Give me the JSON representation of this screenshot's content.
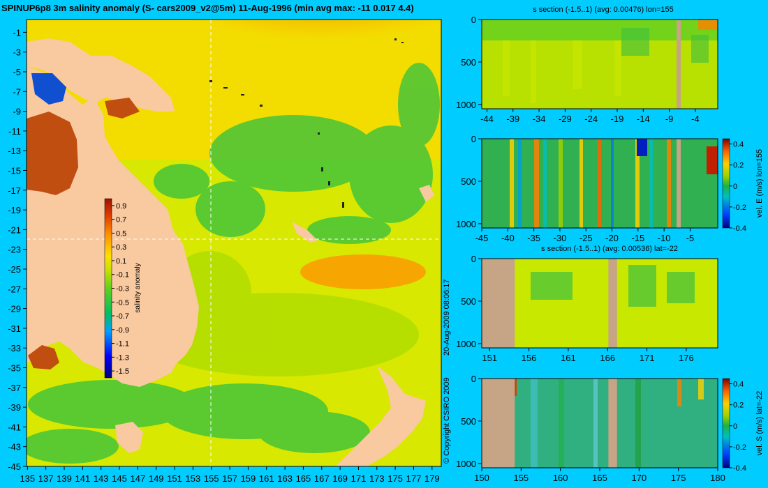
{
  "page": {
    "main_title": "SPINUP6p8 3m salinity anomaly (S- cars2009_v2@5m) 11-Aug-1996 (min avg max: -11 0.017 4.4)",
    "copyright": "© Copyright CSIRO 2009",
    "timestamp": "20-Aug-2009 08:06:17"
  },
  "colors": {
    "background": "#00ccff",
    "land": "#f9c9a0",
    "section_land": "#c6a486",
    "crosshair": "#ffffff"
  },
  "chart_data": [
    {
      "type": "heatmap",
      "name": "map",
      "title": "SPINUP6p8 3m salinity anomaly (S- cars2009_v2@5m) 11-Aug-1996 (min avg max: -11 0.017 4.4)",
      "x_ticks": [
        "135",
        "137",
        "139",
        "141",
        "143",
        "145",
        "147",
        "149",
        "151",
        "153",
        "155",
        "157",
        "159",
        "161",
        "163",
        "165",
        "167",
        "169",
        "171",
        "173",
        "175",
        "177",
        "179"
      ],
      "y_ticks": [
        "-1",
        "-3",
        "-5",
        "-7",
        "-9",
        "-11",
        "-13",
        "-15",
        "-17",
        "-19",
        "-21",
        "-23",
        "-25",
        "-27",
        "-29",
        "-31",
        "-33",
        "-35",
        "-37",
        "-39",
        "-41",
        "-43",
        "-45"
      ],
      "xlim": [
        134.9,
        180
      ],
      "ylim": [
        -45,
        0.3
      ],
      "crosshair": {
        "lon": 155,
        "lat": -22
      },
      "colorbar": {
        "label": "salinity anomaly",
        "ticks": [
          "0.9",
          "0.7",
          "0.5",
          "0.3",
          "0.1",
          "-0.1",
          "-0.3",
          "-0.5",
          "-0.7",
          "-0.9",
          "-1.1",
          "-1.3",
          "-1.5"
        ],
        "range": [
          -1.6,
          1.0
        ]
      }
    },
    {
      "type": "heatmap",
      "name": "s-section-lon155",
      "title": "s section (-1.5..1) (avg: 0.00476) lon=155",
      "x_ticks": [
        "-44",
        "-39",
        "-34",
        "-29",
        "-24",
        "-19",
        "-14",
        "-9",
        "-4"
      ],
      "xlim": [
        -45,
        0.3
      ],
      "y_ticks": [
        "0",
        "500",
        "1000"
      ],
      "ylim": [
        0,
        1050
      ],
      "land_bands": [
        [
          -7.6,
          -6.8
        ]
      ]
    },
    {
      "type": "heatmap",
      "name": "vel-e-section",
      "title": "",
      "x_ticks": [
        "-45",
        "-40",
        "-35",
        "-30",
        "-25",
        "-20",
        "-15",
        "-10",
        "-5"
      ],
      "xlim": [
        -45,
        0.3
      ],
      "y_ticks": [
        "0",
        "500",
        "1000"
      ],
      "ylim": [
        0,
        1050
      ],
      "land_bands": [
        [
          -7.6,
          -6.8
        ]
      ],
      "colorbar": {
        "label": "vel. E (m/s) lon=155",
        "ticks": [
          "0.4",
          "0.2",
          "0",
          "-0.2",
          "-0.4"
        ],
        "range": [
          -0.4,
          0.45
        ]
      }
    },
    {
      "type": "heatmap",
      "name": "s-section-lat-22",
      "title": "s section (-1.5..1) (avg: 0.00536) lat=-22",
      "x_ticks": [
        "151",
        "156",
        "161",
        "166",
        "171",
        "176"
      ],
      "xlim": [
        150,
        180
      ],
      "y_ticks": [
        "0",
        "500",
        "1000"
      ],
      "ylim": [
        0,
        1050
      ],
      "land_bands": [
        [
          150,
          154.2
        ],
        [
          166.1,
          167.2
        ]
      ]
    },
    {
      "type": "heatmap",
      "name": "vel-s-section",
      "title": "",
      "x_ticks": [
        "150",
        "155",
        "160",
        "165",
        "170",
        "175",
        "180"
      ],
      "xlim": [
        150,
        180
      ],
      "y_ticks": [
        "0",
        "500",
        "1000"
      ],
      "ylim": [
        0,
        1050
      ],
      "land_bands": [
        [
          150,
          154.2
        ],
        [
          166.1,
          167.2
        ]
      ],
      "colorbar": {
        "label": "vel. S (m/s) lat=-22",
        "ticks": [
          "0.4",
          "0.2",
          "0",
          "-0.2",
          "-0.4"
        ],
        "range": [
          -0.4,
          0.45
        ]
      }
    }
  ]
}
